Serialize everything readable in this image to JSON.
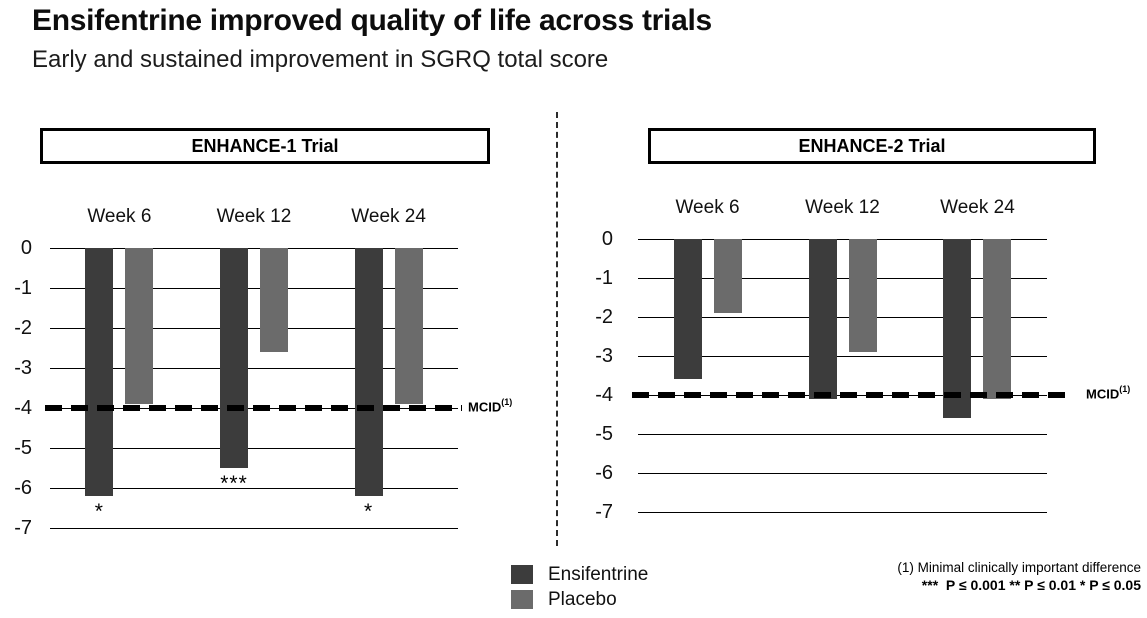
{
  "header": {
    "title": "Ensifentrine improved quality of life across trials",
    "subtitle": "Early and sustained improvement in SGRQ total score"
  },
  "legend": {
    "items": [
      {
        "label": "Ensifentrine",
        "color": "#3c3c3c"
      },
      {
        "label": "Placebo",
        "color": "#6b6b6b"
      }
    ]
  },
  "footnotes": {
    "mcid_note": "(1) Minimal clinically important difference",
    "pvalue_note": "***  P ≤ 0.001 ** P ≤ 0.01 * P ≤ 0.05"
  },
  "chart_data": [
    {
      "type": "bar",
      "title": "ENHANCE-1 Trial",
      "categories": [
        "Week 6",
        "Week 12",
        "Week 24"
      ],
      "series": [
        {
          "name": "Ensifentrine",
          "color": "#3c3c3c",
          "values": [
            -6.2,
            -5.5,
            -6.2
          ],
          "significance": [
            "*",
            "***",
            "*"
          ]
        },
        {
          "name": "Placebo",
          "color": "#6b6b6b",
          "values": [
            -3.9,
            -2.6,
            -3.9
          ],
          "significance": [
            "",
            "",
            ""
          ]
        }
      ],
      "ylabel": "",
      "xlabel": "",
      "ylim": [
        -7,
        0
      ],
      "yticks": [
        0,
        -1,
        -2,
        -3,
        -4,
        -5,
        -6,
        -7
      ],
      "grid": true,
      "legend_position": "bottom",
      "reference_line": {
        "value": -4,
        "label": "MCID",
        "superscript": "(1)"
      }
    },
    {
      "type": "bar",
      "title": "ENHANCE-2 Trial",
      "categories": [
        "Week 6",
        "Week 12",
        "Week 24"
      ],
      "series": [
        {
          "name": "Ensifentrine",
          "color": "#3c3c3c",
          "values": [
            -3.6,
            -4.1,
            -4.6
          ],
          "significance": [
            "",
            "",
            ""
          ]
        },
        {
          "name": "Placebo",
          "color": "#6b6b6b",
          "values": [
            -1.9,
            -2.9,
            -4.1
          ],
          "significance": [
            "",
            "",
            ""
          ]
        }
      ],
      "ylabel": "",
      "xlabel": "",
      "ylim": [
        -7,
        0
      ],
      "yticks": [
        0,
        -1,
        -2,
        -3,
        -4,
        -5,
        -6,
        -7
      ],
      "grid": true,
      "legend_position": "bottom",
      "reference_line": {
        "value": -4,
        "label": "MCID",
        "superscript": "(1)"
      }
    }
  ]
}
